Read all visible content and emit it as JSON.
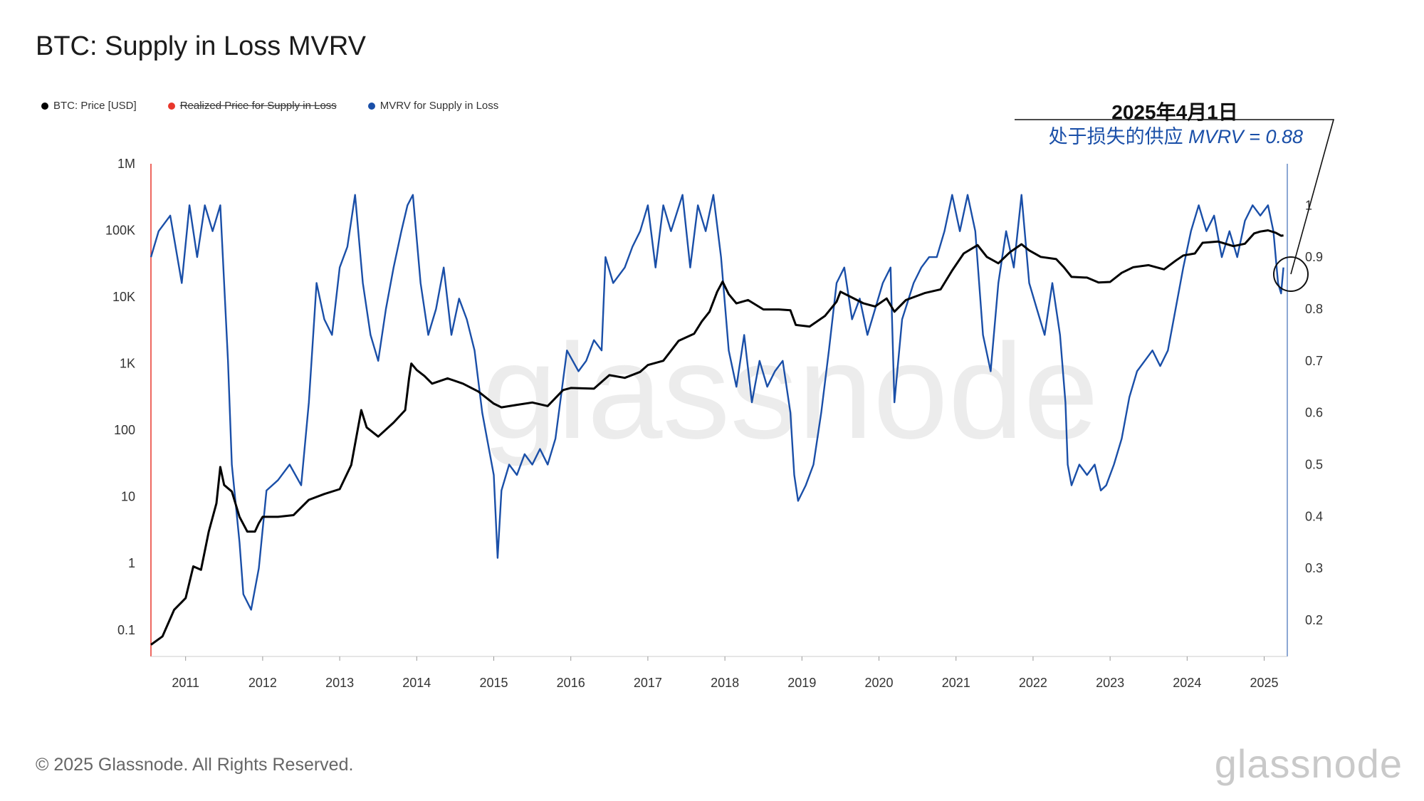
{
  "header": {
    "title": "BTC: Supply in Loss MVRV"
  },
  "legend": [
    {
      "label": "BTC: Price [USD]",
      "color": "#000000",
      "struck": false
    },
    {
      "label": "Realized Price for Supply in Loss",
      "color": "#e8372c",
      "struck": true
    },
    {
      "label": "MVRV for Supply in Loss",
      "color": "#1a4fa8",
      "struck": false
    }
  ],
  "annotation": {
    "date": "2025年4月1日",
    "label": "处于损失的供应",
    "value_text": "MVRV = 0.88"
  },
  "footer": {
    "copyright": "© 2025 Glassnode. All Rights Reserved.",
    "brand": "glassnode"
  },
  "watermark": "glassnode",
  "chart_data": {
    "type": "line",
    "x_range": [
      2010.55,
      2025.3
    ],
    "x_ticks": [
      "2011",
      "2012",
      "2013",
      "2014",
      "2015",
      "2016",
      "2017",
      "2018",
      "2019",
      "2020",
      "2021",
      "2022",
      "2023",
      "2024",
      "2025"
    ],
    "y_left": {
      "scale": "log",
      "range": [
        0.04,
        1000000
      ],
      "tick_values": [
        0.1,
        1,
        10,
        100,
        1000,
        10000,
        100000,
        1000000
      ],
      "tick_labels": [
        "0.1",
        "1",
        "10",
        "100",
        "1K",
        "10K",
        "100K",
        "1M"
      ]
    },
    "y_right": {
      "scale": "linear",
      "range": [
        0.13,
        1.08
      ],
      "tick_values": [
        0.2,
        0.3,
        0.4,
        0.5,
        0.6,
        0.7,
        0.8,
        0.9,
        1.0
      ],
      "tick_labels": [
        "0.2",
        "0.3",
        "0.4",
        "0.5",
        "0.6",
        "0.7",
        "0.8",
        "0.9",
        "1"
      ]
    },
    "series": [
      {
        "name": "BTC: Price [USD]",
        "axis": "left",
        "color": "#000000",
        "points": [
          [
            2010.55,
            0.06
          ],
          [
            2010.7,
            0.08
          ],
          [
            2010.85,
            0.2
          ],
          [
            2011.0,
            0.3
          ],
          [
            2011.1,
            0.9
          ],
          [
            2011.2,
            0.8
          ],
          [
            2011.3,
            3
          ],
          [
            2011.4,
            8
          ],
          [
            2011.45,
            28
          ],
          [
            2011.5,
            15
          ],
          [
            2011.6,
            12
          ],
          [
            2011.7,
            5
          ],
          [
            2011.8,
            3
          ],
          [
            2011.9,
            3
          ],
          [
            2011.95,
            4
          ],
          [
            2012.0,
            5
          ],
          [
            2012.2,
            5
          ],
          [
            2012.4,
            5.3
          ],
          [
            2012.6,
            9
          ],
          [
            2012.8,
            11
          ],
          [
            2013.0,
            13
          ],
          [
            2013.15,
            30
          ],
          [
            2013.28,
            200
          ],
          [
            2013.35,
            110
          ],
          [
            2013.5,
            80
          ],
          [
            2013.7,
            130
          ],
          [
            2013.85,
            200
          ],
          [
            2013.9,
            600
          ],
          [
            2013.93,
            1000
          ],
          [
            2014.0,
            800
          ],
          [
            2014.1,
            650
          ],
          [
            2014.2,
            500
          ],
          [
            2014.4,
            600
          ],
          [
            2014.6,
            500
          ],
          [
            2014.8,
            380
          ],
          [
            2015.0,
            250
          ],
          [
            2015.1,
            220
          ],
          [
            2015.3,
            240
          ],
          [
            2015.5,
            260
          ],
          [
            2015.7,
            230
          ],
          [
            2015.9,
            400
          ],
          [
            2016.0,
            430
          ],
          [
            2016.3,
            420
          ],
          [
            2016.5,
            670
          ],
          [
            2016.7,
            610
          ],
          [
            2016.9,
            750
          ],
          [
            2017.0,
            950
          ],
          [
            2017.2,
            1100
          ],
          [
            2017.4,
            2200
          ],
          [
            2017.6,
            2800
          ],
          [
            2017.7,
            4300
          ],
          [
            2017.8,
            6000
          ],
          [
            2017.9,
            12000
          ],
          [
            2017.97,
            17000
          ],
          [
            2018.05,
            11000
          ],
          [
            2018.15,
            8000
          ],
          [
            2018.3,
            9000
          ],
          [
            2018.5,
            6500
          ],
          [
            2018.7,
            6500
          ],
          [
            2018.85,
            6300
          ],
          [
            2018.92,
            3800
          ],
          [
            2019.1,
            3600
          ],
          [
            2019.3,
            5200
          ],
          [
            2019.45,
            8500
          ],
          [
            2019.5,
            12000
          ],
          [
            2019.6,
            10500
          ],
          [
            2019.8,
            8000
          ],
          [
            2019.95,
            7200
          ],
          [
            2020.1,
            9500
          ],
          [
            2020.2,
            6000
          ],
          [
            2020.35,
            9000
          ],
          [
            2020.6,
            11500
          ],
          [
            2020.8,
            13000
          ],
          [
            2020.95,
            25000
          ],
          [
            2021.1,
            45000
          ],
          [
            2021.28,
            60000
          ],
          [
            2021.4,
            40000
          ],
          [
            2021.55,
            32000
          ],
          [
            2021.7,
            47000
          ],
          [
            2021.85,
            62000
          ],
          [
            2021.95,
            50000
          ],
          [
            2022.1,
            40000
          ],
          [
            2022.3,
            37000
          ],
          [
            2022.4,
            28000
          ],
          [
            2022.5,
            20000
          ],
          [
            2022.7,
            19500
          ],
          [
            2022.85,
            16500
          ],
          [
            2023.0,
            16800
          ],
          [
            2023.15,
            23000
          ],
          [
            2023.3,
            28000
          ],
          [
            2023.5,
            30000
          ],
          [
            2023.7,
            26000
          ],
          [
            2023.85,
            35000
          ],
          [
            2023.95,
            42000
          ],
          [
            2024.1,
            45000
          ],
          [
            2024.2,
            65000
          ],
          [
            2024.4,
            68000
          ],
          [
            2024.6,
            58000
          ],
          [
            2024.75,
            63000
          ],
          [
            2024.87,
            90000
          ],
          [
            2024.95,
            96000
          ],
          [
            2025.05,
            100000
          ],
          [
            2025.15,
            92000
          ],
          [
            2025.22,
            83000
          ],
          [
            2025.25,
            84000
          ]
        ]
      },
      {
        "name": "MVRV for Supply in Loss",
        "axis": "right",
        "color": "#1a4fa8",
        "points": [
          [
            2010.55,
            0.9
          ],
          [
            2010.65,
            0.95
          ],
          [
            2010.8,
            0.98
          ],
          [
            2010.95,
            0.85
          ],
          [
            2011.05,
            1.0
          ],
          [
            2011.15,
            0.9
          ],
          [
            2011.25,
            1.0
          ],
          [
            2011.35,
            0.95
          ],
          [
            2011.45,
            1.0
          ],
          [
            2011.55,
            0.7
          ],
          [
            2011.6,
            0.5
          ],
          [
            2011.7,
            0.35
          ],
          [
            2011.75,
            0.25
          ],
          [
            2011.85,
            0.22
          ],
          [
            2011.95,
            0.3
          ],
          [
            2012.05,
            0.45
          ],
          [
            2012.2,
            0.47
          ],
          [
            2012.35,
            0.5
          ],
          [
            2012.5,
            0.46
          ],
          [
            2012.6,
            0.62
          ],
          [
            2012.7,
            0.85
          ],
          [
            2012.8,
            0.78
          ],
          [
            2012.9,
            0.75
          ],
          [
            2013.0,
            0.88
          ],
          [
            2013.1,
            0.92
          ],
          [
            2013.2,
            1.02
          ],
          [
            2013.3,
            0.85
          ],
          [
            2013.4,
            0.75
          ],
          [
            2013.5,
            0.7
          ],
          [
            2013.6,
            0.8
          ],
          [
            2013.7,
            0.88
          ],
          [
            2013.8,
            0.95
          ],
          [
            2013.88,
            1.0
          ],
          [
            2013.95,
            1.02
          ],
          [
            2014.05,
            0.85
          ],
          [
            2014.15,
            0.75
          ],
          [
            2014.25,
            0.8
          ],
          [
            2014.35,
            0.88
          ],
          [
            2014.45,
            0.75
          ],
          [
            2014.55,
            0.82
          ],
          [
            2014.65,
            0.78
          ],
          [
            2014.75,
            0.72
          ],
          [
            2014.85,
            0.6
          ],
          [
            2015.0,
            0.48
          ],
          [
            2015.05,
            0.32
          ],
          [
            2015.1,
            0.45
          ],
          [
            2015.2,
            0.5
          ],
          [
            2015.3,
            0.48
          ],
          [
            2015.4,
            0.52
          ],
          [
            2015.5,
            0.5
          ],
          [
            2015.6,
            0.53
          ],
          [
            2015.7,
            0.5
          ],
          [
            2015.8,
            0.55
          ],
          [
            2015.95,
            0.72
          ],
          [
            2016.1,
            0.68
          ],
          [
            2016.2,
            0.7
          ],
          [
            2016.3,
            0.74
          ],
          [
            2016.4,
            0.72
          ],
          [
            2016.45,
            0.9
          ],
          [
            2016.55,
            0.85
          ],
          [
            2016.7,
            0.88
          ],
          [
            2016.8,
            0.92
          ],
          [
            2016.9,
            0.95
          ],
          [
            2017.0,
            1.0
          ],
          [
            2017.1,
            0.88
          ],
          [
            2017.2,
            1.0
          ],
          [
            2017.3,
            0.95
          ],
          [
            2017.45,
            1.02
          ],
          [
            2017.55,
            0.88
          ],
          [
            2017.65,
            1.0
          ],
          [
            2017.75,
            0.95
          ],
          [
            2017.85,
            1.02
          ],
          [
            2017.95,
            0.9
          ],
          [
            2018.05,
            0.72
          ],
          [
            2018.15,
            0.65
          ],
          [
            2018.25,
            0.75
          ],
          [
            2018.35,
            0.62
          ],
          [
            2018.45,
            0.7
          ],
          [
            2018.55,
            0.65
          ],
          [
            2018.65,
            0.68
          ],
          [
            2018.75,
            0.7
          ],
          [
            2018.85,
            0.6
          ],
          [
            2018.9,
            0.48
          ],
          [
            2018.95,
            0.43
          ],
          [
            2019.05,
            0.46
          ],
          [
            2019.15,
            0.5
          ],
          [
            2019.25,
            0.6
          ],
          [
            2019.35,
            0.72
          ],
          [
            2019.45,
            0.85
          ],
          [
            2019.55,
            0.88
          ],
          [
            2019.65,
            0.78
          ],
          [
            2019.75,
            0.82
          ],
          [
            2019.85,
            0.75
          ],
          [
            2019.95,
            0.8
          ],
          [
            2020.05,
            0.85
          ],
          [
            2020.15,
            0.88
          ],
          [
            2020.2,
            0.62
          ],
          [
            2020.3,
            0.78
          ],
          [
            2020.45,
            0.85
          ],
          [
            2020.55,
            0.88
          ],
          [
            2020.65,
            0.9
          ],
          [
            2020.75,
            0.9
          ],
          [
            2020.85,
            0.95
          ],
          [
            2020.95,
            1.02
          ],
          [
            2021.05,
            0.95
          ],
          [
            2021.15,
            1.02
          ],
          [
            2021.25,
            0.95
          ],
          [
            2021.35,
            0.75
          ],
          [
            2021.45,
            0.68
          ],
          [
            2021.55,
            0.85
          ],
          [
            2021.65,
            0.95
          ],
          [
            2021.75,
            0.88
          ],
          [
            2021.85,
            1.02
          ],
          [
            2021.95,
            0.85
          ],
          [
            2022.05,
            0.8
          ],
          [
            2022.15,
            0.75
          ],
          [
            2022.25,
            0.85
          ],
          [
            2022.35,
            0.75
          ],
          [
            2022.42,
            0.62
          ],
          [
            2022.45,
            0.5
          ],
          [
            2022.5,
            0.46
          ],
          [
            2022.6,
            0.5
          ],
          [
            2022.7,
            0.48
          ],
          [
            2022.8,
            0.5
          ],
          [
            2022.88,
            0.45
          ],
          [
            2022.95,
            0.46
          ],
          [
            2023.05,
            0.5
          ],
          [
            2023.15,
            0.55
          ],
          [
            2023.25,
            0.63
          ],
          [
            2023.35,
            0.68
          ],
          [
            2023.45,
            0.7
          ],
          [
            2023.55,
            0.72
          ],
          [
            2023.65,
            0.69
          ],
          [
            2023.75,
            0.72
          ],
          [
            2023.85,
            0.8
          ],
          [
            2023.95,
            0.88
          ],
          [
            2024.05,
            0.95
          ],
          [
            2024.15,
            1.0
          ],
          [
            2024.25,
            0.95
          ],
          [
            2024.35,
            0.98
          ],
          [
            2024.45,
            0.9
          ],
          [
            2024.55,
            0.95
          ],
          [
            2024.65,
            0.9
          ],
          [
            2024.75,
            0.97
          ],
          [
            2024.85,
            1.0
          ],
          [
            2024.95,
            0.98
          ],
          [
            2025.05,
            1.0
          ],
          [
            2025.12,
            0.95
          ],
          [
            2025.18,
            0.85
          ],
          [
            2025.22,
            0.83
          ],
          [
            2025.25,
            0.88
          ]
        ]
      }
    ]
  }
}
